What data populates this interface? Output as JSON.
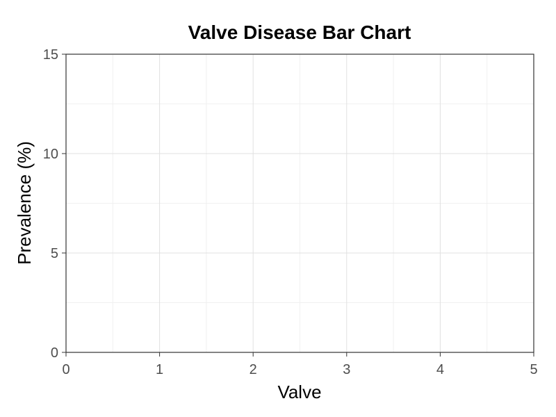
{
  "chart_data": {
    "type": "bar",
    "title": "Valve Disease Bar Chart",
    "xlabel": "Valve",
    "ylabel": "Prevalence (%)",
    "xlim": [
      0,
      5
    ],
    "ylim": [
      0,
      15
    ],
    "x_ticks": [
      "0",
      "1",
      "2",
      "3",
      "4",
      "5"
    ],
    "y_ticks": [
      "0",
      "5",
      "10",
      "15"
    ],
    "categories": [],
    "values": [],
    "grid": true,
    "colors": {
      "panel_border": "#333333",
      "major_grid": "#e0e0e0",
      "minor_grid": "#f0f0f0",
      "tick_text": "#4d4d4d",
      "text": "#000000"
    }
  }
}
